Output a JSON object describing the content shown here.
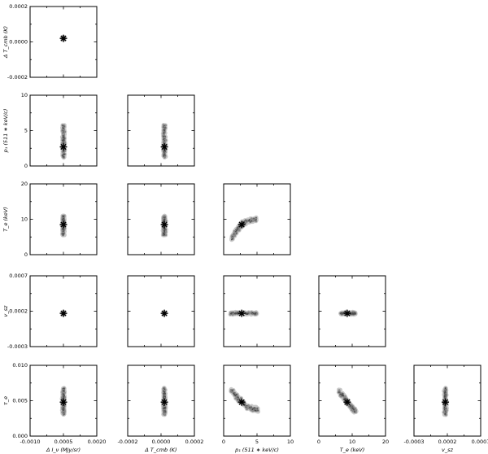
{
  "chart_data": {
    "type": "scatter",
    "title": "",
    "layout": "lower-triangle corner plot, 5 rows x 5 columns",
    "parameters": [
      {
        "key": "dIv",
        "label": "Δ I_ν (MJy/sr)",
        "range": [
          -0.001,
          0.002
        ],
        "ticks": [
          "-0.0010",
          "0.0005",
          "0.0020"
        ],
        "best_fit": 0.0005,
        "spread": 3e-05
      },
      {
        "key": "dTcmb",
        "label": "Δ T_cmb (K)",
        "range": [
          -0.0002,
          0.0002
        ],
        "ticks": [
          "-0.0002",
          "0.0000",
          "0.0002"
        ],
        "best_fit": 2e-05,
        "spread": 5e-06
      },
      {
        "key": "p1",
        "label": "p₁ (511 ∗ keV/c)",
        "range": [
          0,
          10
        ],
        "ticks": [
          "0",
          "5",
          "10"
        ],
        "best_fit": 2.7,
        "spread": 1.0
      },
      {
        "key": "Te",
        "label": "T_e (keV)",
        "range": [
          0,
          20
        ],
        "ticks": [
          "0",
          "10",
          "20"
        ],
        "best_fit": 8.5,
        "spread": 1.5
      },
      {
        "key": "vsz",
        "label": "v_sz",
        "range": [
          -0.0003,
          0.0007
        ],
        "ticks": [
          "-0.0003",
          "0.0002",
          "0.0007"
        ],
        "best_fit": 0.00017,
        "spread": 2e-05
      },
      {
        "key": "tau",
        "label": "τ_e",
        "range": [
          0.0,
          0.01
        ],
        "ticks": [
          "0.000",
          "0.005",
          "0.010"
        ],
        "best_fit": 0.0048,
        "spread": 0.0005
      }
    ],
    "panels": [
      {
        "x": "dIv",
        "y": "dTcmb",
        "shape": "compact",
        "best_fit": [
          0.0005,
          2e-05
        ]
      },
      {
        "x": "dIv",
        "y": "p1",
        "shape": "vertical",
        "best_fit": [
          0.0005,
          2.7
        ],
        "y_extent": [
          1.2,
          5.8
        ]
      },
      {
        "x": "dTcmb",
        "y": "p1",
        "shape": "vertical",
        "best_fit": [
          2e-05,
          2.7
        ],
        "y_extent": [
          1.2,
          5.8
        ]
      },
      {
        "x": "dIv",
        "y": "Te",
        "shape": "vertical",
        "best_fit": [
          0.0005,
          8.5
        ],
        "y_extent": [
          5.5,
          11.0
        ]
      },
      {
        "x": "dTcmb",
        "y": "Te",
        "shape": "vertical",
        "best_fit": [
          2e-05,
          8.5
        ],
        "y_extent": [
          5.5,
          11.0
        ]
      },
      {
        "x": "p1",
        "y": "Te",
        "shape": "curved",
        "best_fit": [
          2.7,
          8.5
        ],
        "curve": [
          [
            1.2,
            4.5
          ],
          [
            2.0,
            7.0
          ],
          [
            2.7,
            8.5
          ],
          [
            3.5,
            9.5
          ],
          [
            5.0,
            10.0
          ]
        ]
      },
      {
        "x": "dIv",
        "y": "vsz",
        "shape": "compact",
        "best_fit": [
          0.0005,
          0.00017
        ]
      },
      {
        "x": "dTcmb",
        "y": "vsz",
        "shape": "compact",
        "best_fit": [
          2e-05,
          0.00017
        ]
      },
      {
        "x": "p1",
        "y": "vsz",
        "shape": "horizontal",
        "best_fit": [
          2.7,
          0.00017
        ],
        "x_extent": [
          1.0,
          5.0
        ]
      },
      {
        "x": "Te",
        "y": "vsz",
        "shape": "horizontal",
        "best_fit": [
          8.5,
          0.00017
        ],
        "x_extent": [
          6.5,
          11.0
        ]
      },
      {
        "x": "dIv",
        "y": "tau",
        "shape": "vertical",
        "best_fit": [
          0.0005,
          0.0048
        ],
        "y_extent": [
          0.003,
          0.0068
        ]
      },
      {
        "x": "dTcmb",
        "y": "tau",
        "shape": "vertical",
        "best_fit": [
          2e-05,
          0.0048
        ],
        "y_extent": [
          0.003,
          0.0068
        ]
      },
      {
        "x": "p1",
        "y": "tau",
        "shape": "curved",
        "best_fit": [
          2.7,
          0.0048
        ],
        "curve": [
          [
            1.2,
            0.0065
          ],
          [
            2.0,
            0.0055
          ],
          [
            2.7,
            0.0048
          ],
          [
            3.8,
            0.004
          ],
          [
            5.2,
            0.0037
          ]
        ]
      },
      {
        "x": "Te",
        "y": "tau",
        "shape": "curved",
        "best_fit": [
          8.5,
          0.0048
        ],
        "curve": [
          [
            6.0,
            0.0064
          ],
          [
            7.5,
            0.0055
          ],
          [
            8.5,
            0.0048
          ],
          [
            10.0,
            0.004
          ],
          [
            11.0,
            0.0035
          ]
        ]
      },
      {
        "x": "vsz",
        "y": "tau",
        "shape": "vertical",
        "best_fit": [
          0.00017,
          0.0048
        ],
        "y_extent": [
          0.003,
          0.0068
        ]
      }
    ],
    "grid": false,
    "legend": "none",
    "marker_symbol": "asterisk"
  }
}
